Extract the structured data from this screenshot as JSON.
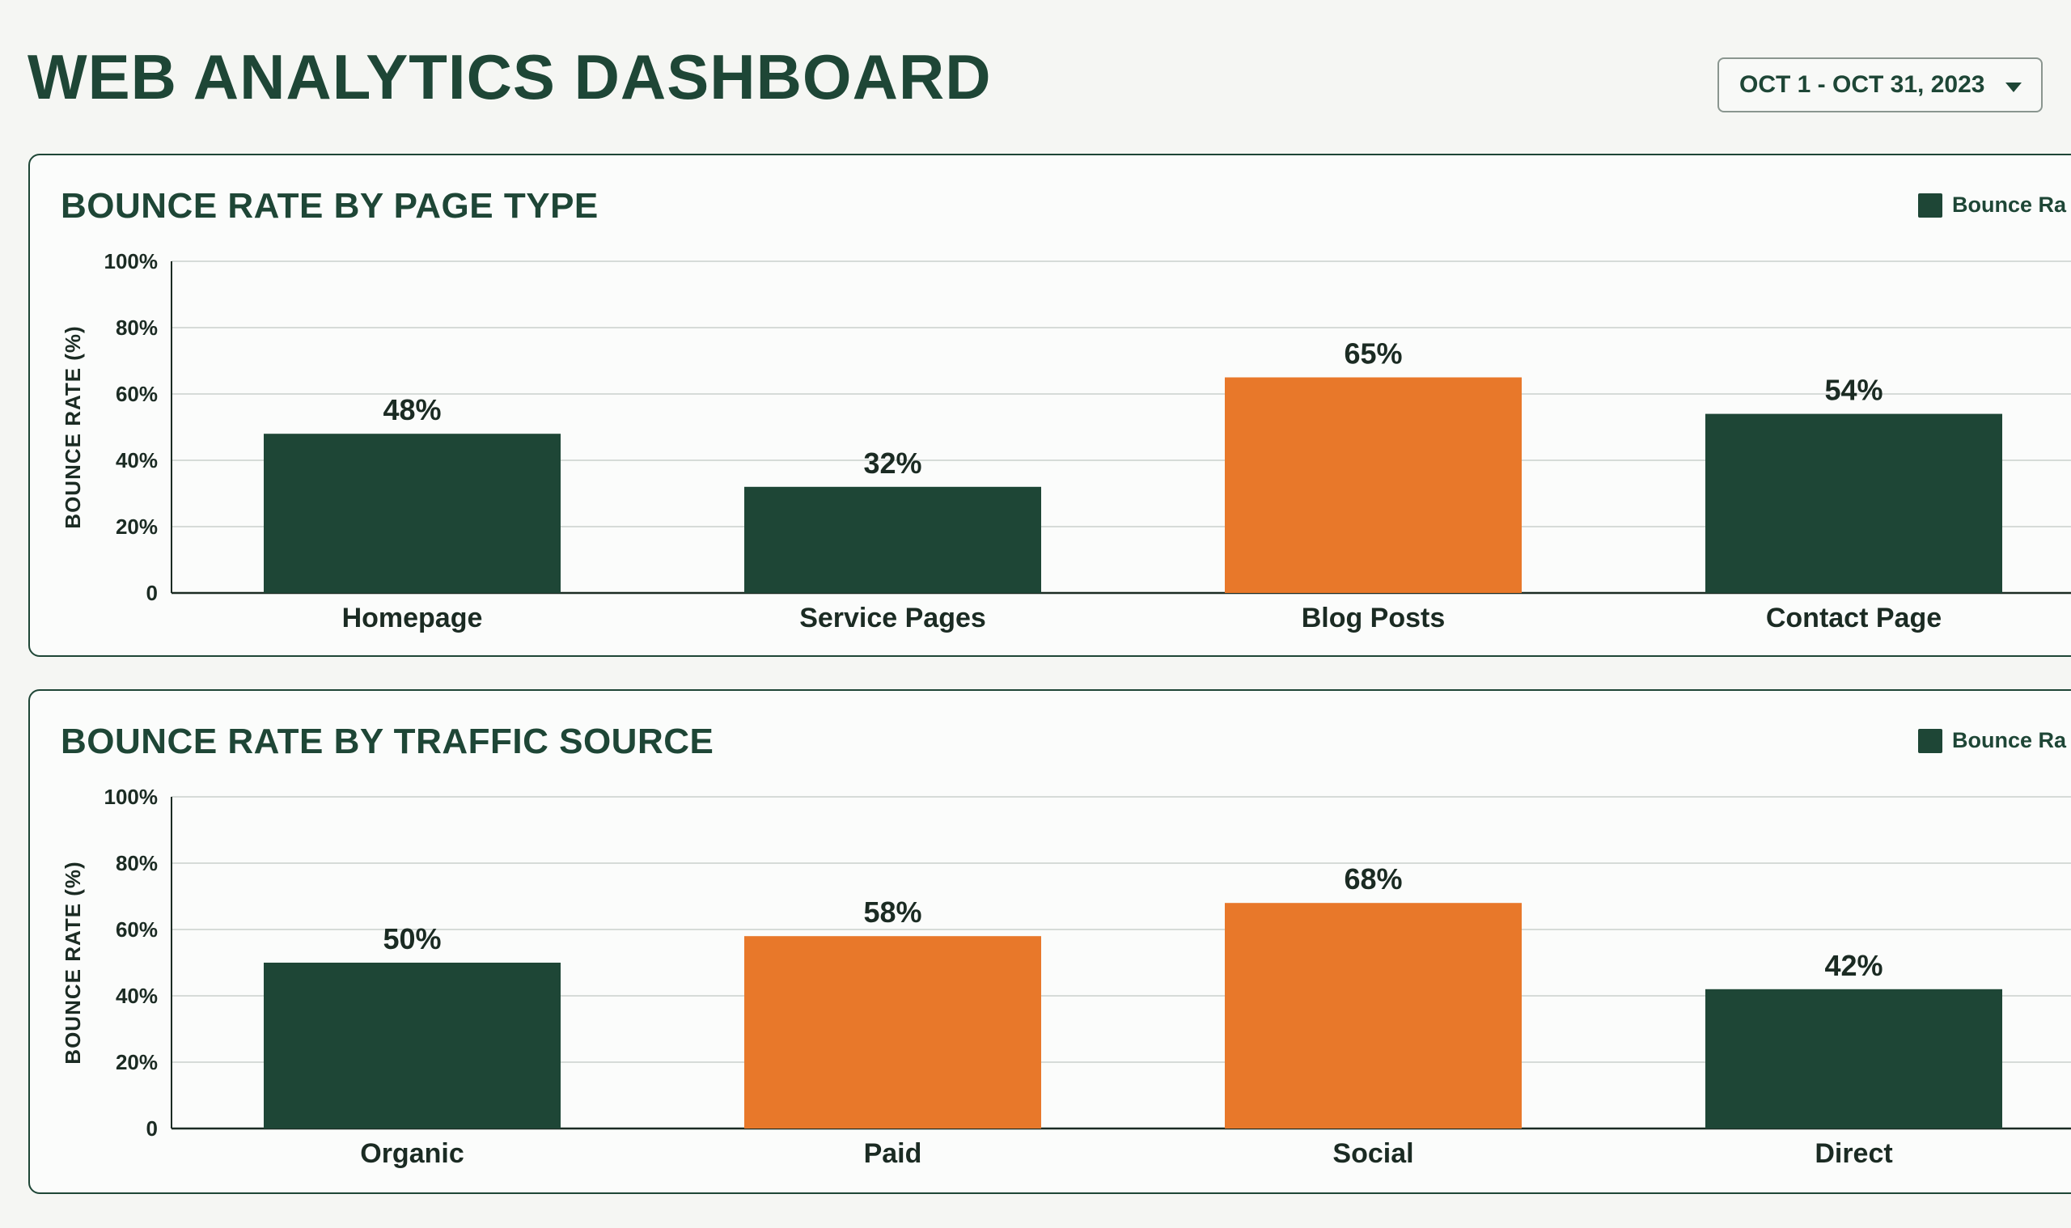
{
  "header": {
    "title": "WEB ANALYTICS DASHBOARD",
    "date_range": "OCT 1 - OCT 31, 2023"
  },
  "colors": {
    "primary": "#1e4636",
    "highlight": "#e8782a",
    "background": "#f5f6f3"
  },
  "chart_data": [
    {
      "type": "bar",
      "title": "BOUNCE RATE BY PAGE TYPE",
      "legend": "Bounce Ra",
      "legend_position": "top-right",
      "ylabel": "BOUNCE RATE (%)",
      "xlabel": "",
      "ylim": [
        0,
        100
      ],
      "yticks": [
        "0",
        "20%",
        "40%",
        "60%",
        "80%",
        "100%"
      ],
      "grid": true,
      "categories": [
        "Homepage",
        "Service Pages",
        "Blog Posts",
        "Contact Page"
      ],
      "values": [
        48,
        32,
        65,
        54
      ],
      "value_labels": [
        "48%",
        "32%",
        "65%",
        "54%"
      ],
      "bar_colors": [
        "#1e4636",
        "#1e4636",
        "#e8782a",
        "#1e4636"
      ]
    },
    {
      "type": "bar",
      "title": "BOUNCE RATE BY TRAFFIC SOURCE",
      "legend": "Bounce Ra",
      "legend_position": "top-right",
      "ylabel": "BOUNCE RATE (%)",
      "xlabel": "",
      "ylim": [
        0,
        100
      ],
      "yticks": [
        "0",
        "20%",
        "40%",
        "60%",
        "80%",
        "100%"
      ],
      "grid": true,
      "categories": [
        "Organic",
        "Paid",
        "Social",
        "Direct"
      ],
      "values": [
        50,
        58,
        68,
        42
      ],
      "value_labels": [
        "50%",
        "58%",
        "68%",
        "42%"
      ],
      "bar_colors": [
        "#1e4636",
        "#e8782a",
        "#e8782a",
        "#1e4636"
      ]
    }
  ]
}
